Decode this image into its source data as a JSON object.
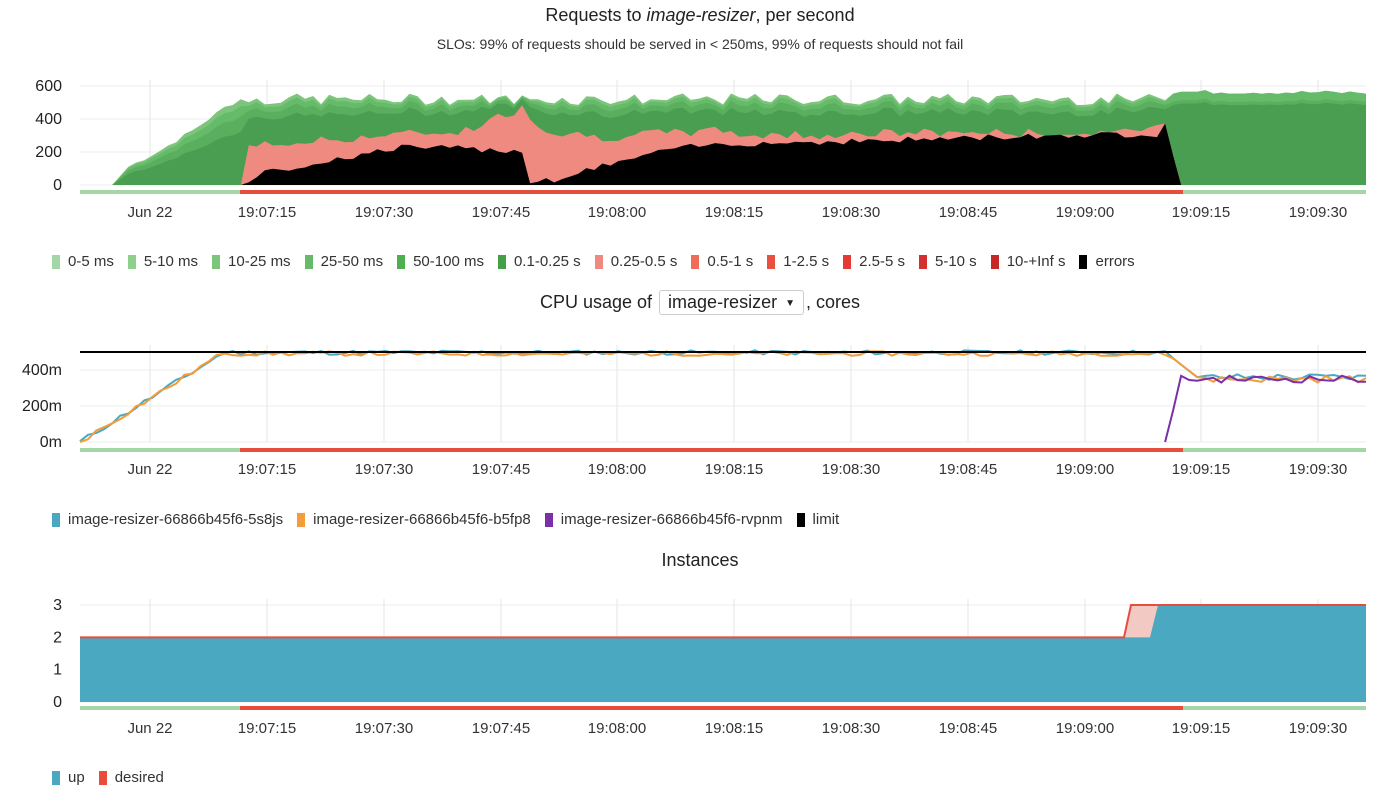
{
  "chart1": {
    "title_pre": "Requests to ",
    "title_em": "image-resizer",
    "title_post": ", per second",
    "subtitle": "SLOs: 99% of requests should be served in < 250ms, 99% of requests should not fail",
    "legend": [
      {
        "label": "0-5 ms",
        "color": "#a5d6a7"
      },
      {
        "label": "5-10 ms",
        "color": "#8fcf8c"
      },
      {
        "label": "10-25 ms",
        "color": "#7cc57a"
      },
      {
        "label": "25-50 ms",
        "color": "#66bb6a"
      },
      {
        "label": "50-100 ms",
        "color": "#4caf50"
      },
      {
        "label": "0.1-0.25 s",
        "color": "#43a047"
      },
      {
        "label": "0.25-0.5 s",
        "color": "#ef8a80"
      },
      {
        "label": "0.5-1 s",
        "color": "#ef6c5a"
      },
      {
        "label": "1-2.5 s",
        "color": "#e8503f"
      },
      {
        "label": "2.5-5 s",
        "color": "#e53935"
      },
      {
        "label": "5-10 s",
        "color": "#d32f2f"
      },
      {
        "label": "10-+Inf s",
        "color": "#c62828"
      },
      {
        "label": "errors",
        "color": "#000000"
      }
    ]
  },
  "chart2": {
    "title_pre": "CPU usage of",
    "select_value": "image-resizer",
    "title_post": ", cores",
    "legend": [
      {
        "label": "image-resizer-66866b45f6-5s8js",
        "color": "#4aa8c0"
      },
      {
        "label": "image-resizer-66866b45f6-b5fp8",
        "color": "#f39c3a"
      },
      {
        "label": "image-resizer-66866b45f6-rvpnm",
        "color": "#7b2fa8"
      },
      {
        "label": "limit",
        "color": "#000000"
      }
    ]
  },
  "chart3": {
    "title": "Instances",
    "legend": [
      {
        "label": "up",
        "color": "#4aa8c0"
      },
      {
        "label": "desired",
        "color": "#e74c3c"
      }
    ]
  },
  "x_ticks": [
    "Jun 22",
    "19:07:15",
    "19:07:30",
    "19:07:45",
    "19:08:00",
    "19:08:15",
    "19:08:30",
    "19:08:45",
    "19:09:00",
    "19:09:15",
    "19:09:30"
  ],
  "chart_data": [
    {
      "type": "area",
      "title": "Requests to image-resizer, per second",
      "x_start": "19:06:58",
      "x_end": "19:09:38",
      "yticks": [
        "600",
        "400",
        "200",
        "0"
      ],
      "ylim": [
        0,
        600
      ],
      "stacked": true,
      "series": [
        {
          "name": "0-5 ms",
          "total_profile": [
            [
              0,
              0
            ],
            [
              5,
              0
            ],
            [
              6,
              150
            ],
            [
              10,
              300
            ],
            [
              18,
              500
            ],
            [
              20,
              530
            ],
            [
              135,
              530
            ],
            [
              136,
              580
            ],
            [
              160,
              570
            ]
          ]
        },
        {
          "name": "0.25-0.5 s",
          "profile": [
            [
              20,
              0
            ],
            [
              21,
              250
            ],
            [
              35,
              300
            ],
            [
              55,
              480
            ],
            [
              60,
              280
            ],
            [
              79,
              350
            ],
            [
              80,
              280
            ],
            [
              120,
              350
            ],
            [
              136,
              0
            ]
          ]
        },
        {
          "name": "errors",
          "profile": [
            [
              20,
              0
            ],
            [
              22,
              70
            ],
            [
              30,
              150
            ],
            [
              55,
              130
            ],
            [
              56,
              20
            ],
            [
              62,
              70
            ],
            [
              72,
              220
            ],
            [
              80,
              250
            ],
            [
              100,
              280
            ],
            [
              130,
              300
            ],
            [
              135,
              380
            ],
            [
              137,
              0
            ]
          ]
        }
      ],
      "status_bar": [
        {
          "from": "19:06:58",
          "to": "19:07:18",
          "color": "#a5d6a7"
        },
        {
          "from": "19:07:18",
          "to": "19:09:16",
          "color": "#e74c3c"
        },
        {
          "from": "19:09:16",
          "to": "19:09:38",
          "color": "#a5d6a7"
        }
      ]
    },
    {
      "type": "line",
      "title": "CPU usage of image-resizer, cores",
      "yticks": [
        "400m",
        "200m",
        "0m"
      ],
      "ylim": [
        "0m",
        "500m"
      ],
      "limit": "500m",
      "series": [
        {
          "name": "image-resizer-66866b45f6-5s8js",
          "ramp_to": "500m",
          "after_scale": "360m"
        },
        {
          "name": "image-resizer-66866b45f6-b5fp8",
          "ramp_to": "500m",
          "after_scale": "350m"
        },
        {
          "name": "image-resizer-66866b45f6-rvpnm",
          "starts_at": "19:09:12",
          "value": "350m"
        },
        {
          "name": "limit",
          "value": "500m"
        }
      ]
    },
    {
      "type": "area",
      "title": "Instances",
      "yticks": [
        "3",
        "2",
        "1",
        "0"
      ],
      "ylim": [
        0,
        3
      ],
      "series": [
        {
          "name": "up",
          "steps": [
            [
              "19:06:58",
              2
            ],
            [
              "19:09:12",
              3
            ]
          ]
        },
        {
          "name": "desired",
          "steps": [
            [
              "19:06:58",
              2
            ],
            [
              "19:09:08",
              3
            ]
          ]
        }
      ]
    }
  ]
}
